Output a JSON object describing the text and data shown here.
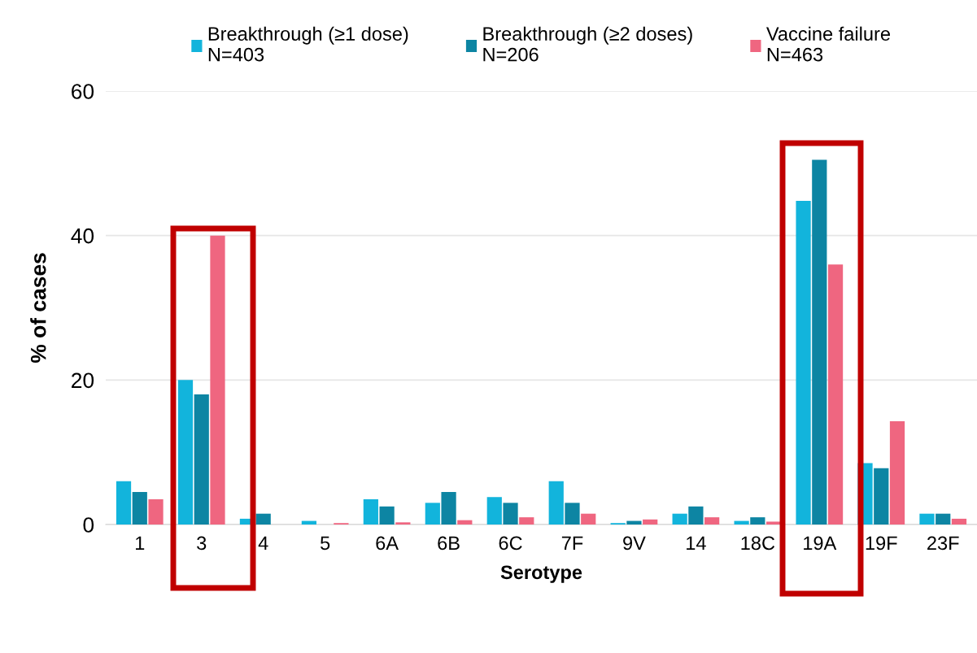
{
  "chart_data": {
    "type": "bar",
    "xlabel": "Serotype",
    "ylabel": "% of cases",
    "categories": [
      "1",
      "3",
      "4",
      "5",
      "6A",
      "6B",
      "6C",
      "7F",
      "9V",
      "14",
      "18C",
      "19A",
      "19F",
      "23F"
    ],
    "series": [
      {
        "name": "Breakthrough (≥1 dose)\nN=403",
        "color": "#12b4dc",
        "values": [
          6,
          20,
          0.8,
          0.5,
          3.5,
          3,
          3.8,
          6,
          0.2,
          1.5,
          0.5,
          44.8,
          8.5,
          1.5
        ]
      },
      {
        "name": "Breakthrough (≥2 doses)\nN=206",
        "color": "#0d85a3",
        "values": [
          4.5,
          18,
          1.5,
          0,
          2.5,
          4.5,
          3,
          3,
          0.5,
          2.5,
          1,
          50.5,
          7.8,
          1.5
        ]
      },
      {
        "name": "Vaccine failure\nN=463",
        "color": "#ef6680",
        "values": [
          3.5,
          40,
          0,
          0.2,
          0.3,
          0.6,
          1,
          1.5,
          0.7,
          1,
          0.4,
          36,
          14.3,
          0.8
        ]
      }
    ],
    "ylim": [
      0,
      60
    ],
    "yticks": [
      0,
      20,
      40,
      60
    ],
    "grid": "y",
    "legend": "top"
  }
}
